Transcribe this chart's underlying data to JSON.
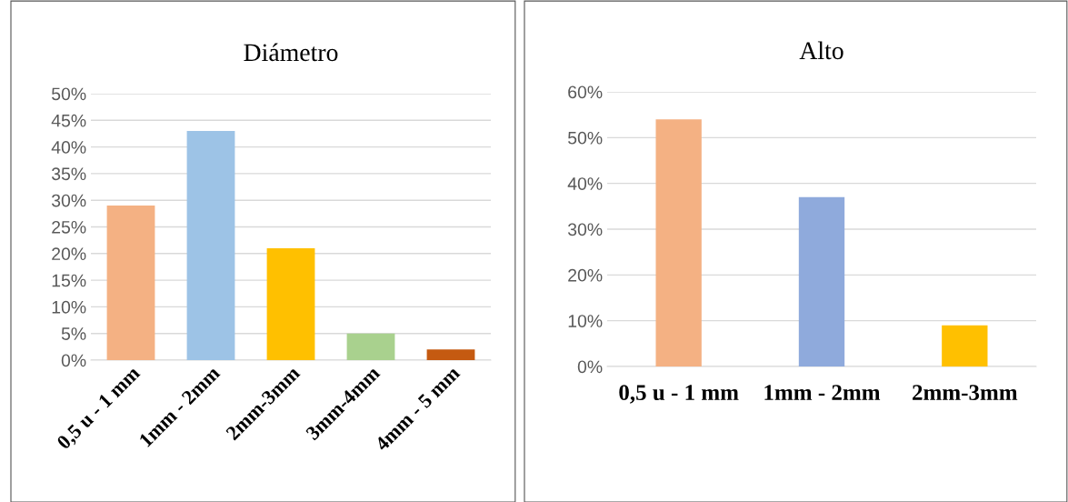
{
  "chart_data": [
    {
      "type": "bar",
      "title": "Diámetro",
      "categories": [
        "0,5 u - 1 mm",
        "1mm - 2mm",
        "2mm-3mm",
        "3mm-4mm",
        "4mm - 5 mm"
      ],
      "values": [
        29,
        43,
        21,
        5,
        2
      ],
      "colors": [
        "#f4b183",
        "#9dc3e6",
        "#ffc000",
        "#a9d18e",
        "#c55a11"
      ],
      "ylim": [
        0,
        50
      ],
      "yticks": [
        {
          "value": 0,
          "label": "0%"
        },
        {
          "value": 5,
          "label": "5%"
        },
        {
          "value": 10,
          "label": "10%"
        },
        {
          "value": 15,
          "label": "15%"
        },
        {
          "value": 20,
          "label": "20%"
        },
        {
          "value": 25,
          "label": "25%"
        },
        {
          "value": 30,
          "label": "30%"
        },
        {
          "value": 35,
          "label": "35%"
        },
        {
          "value": 40,
          "label": "40%"
        },
        {
          "value": 45,
          "label": "45%"
        },
        {
          "value": 50,
          "label": "50%"
        }
      ],
      "grid": "y"
    },
    {
      "type": "bar",
      "title": "Alto",
      "categories": [
        "0,5 u - 1 mm",
        "1mm - 2mm",
        "2mm-3mm"
      ],
      "values": [
        54,
        37,
        9
      ],
      "colors": [
        "#f4b183",
        "#8faadc",
        "#ffc000"
      ],
      "ylim": [
        0,
        60
      ],
      "yticks": [
        {
          "value": 0,
          "label": "0%"
        },
        {
          "value": 10,
          "label": "10%"
        },
        {
          "value": 20,
          "label": "20%"
        },
        {
          "value": 30,
          "label": "30%"
        },
        {
          "value": 40,
          "label": "40%"
        },
        {
          "value": 50,
          "label": "50%"
        },
        {
          "value": 60,
          "label": "60%"
        }
      ],
      "grid": "y"
    }
  ]
}
